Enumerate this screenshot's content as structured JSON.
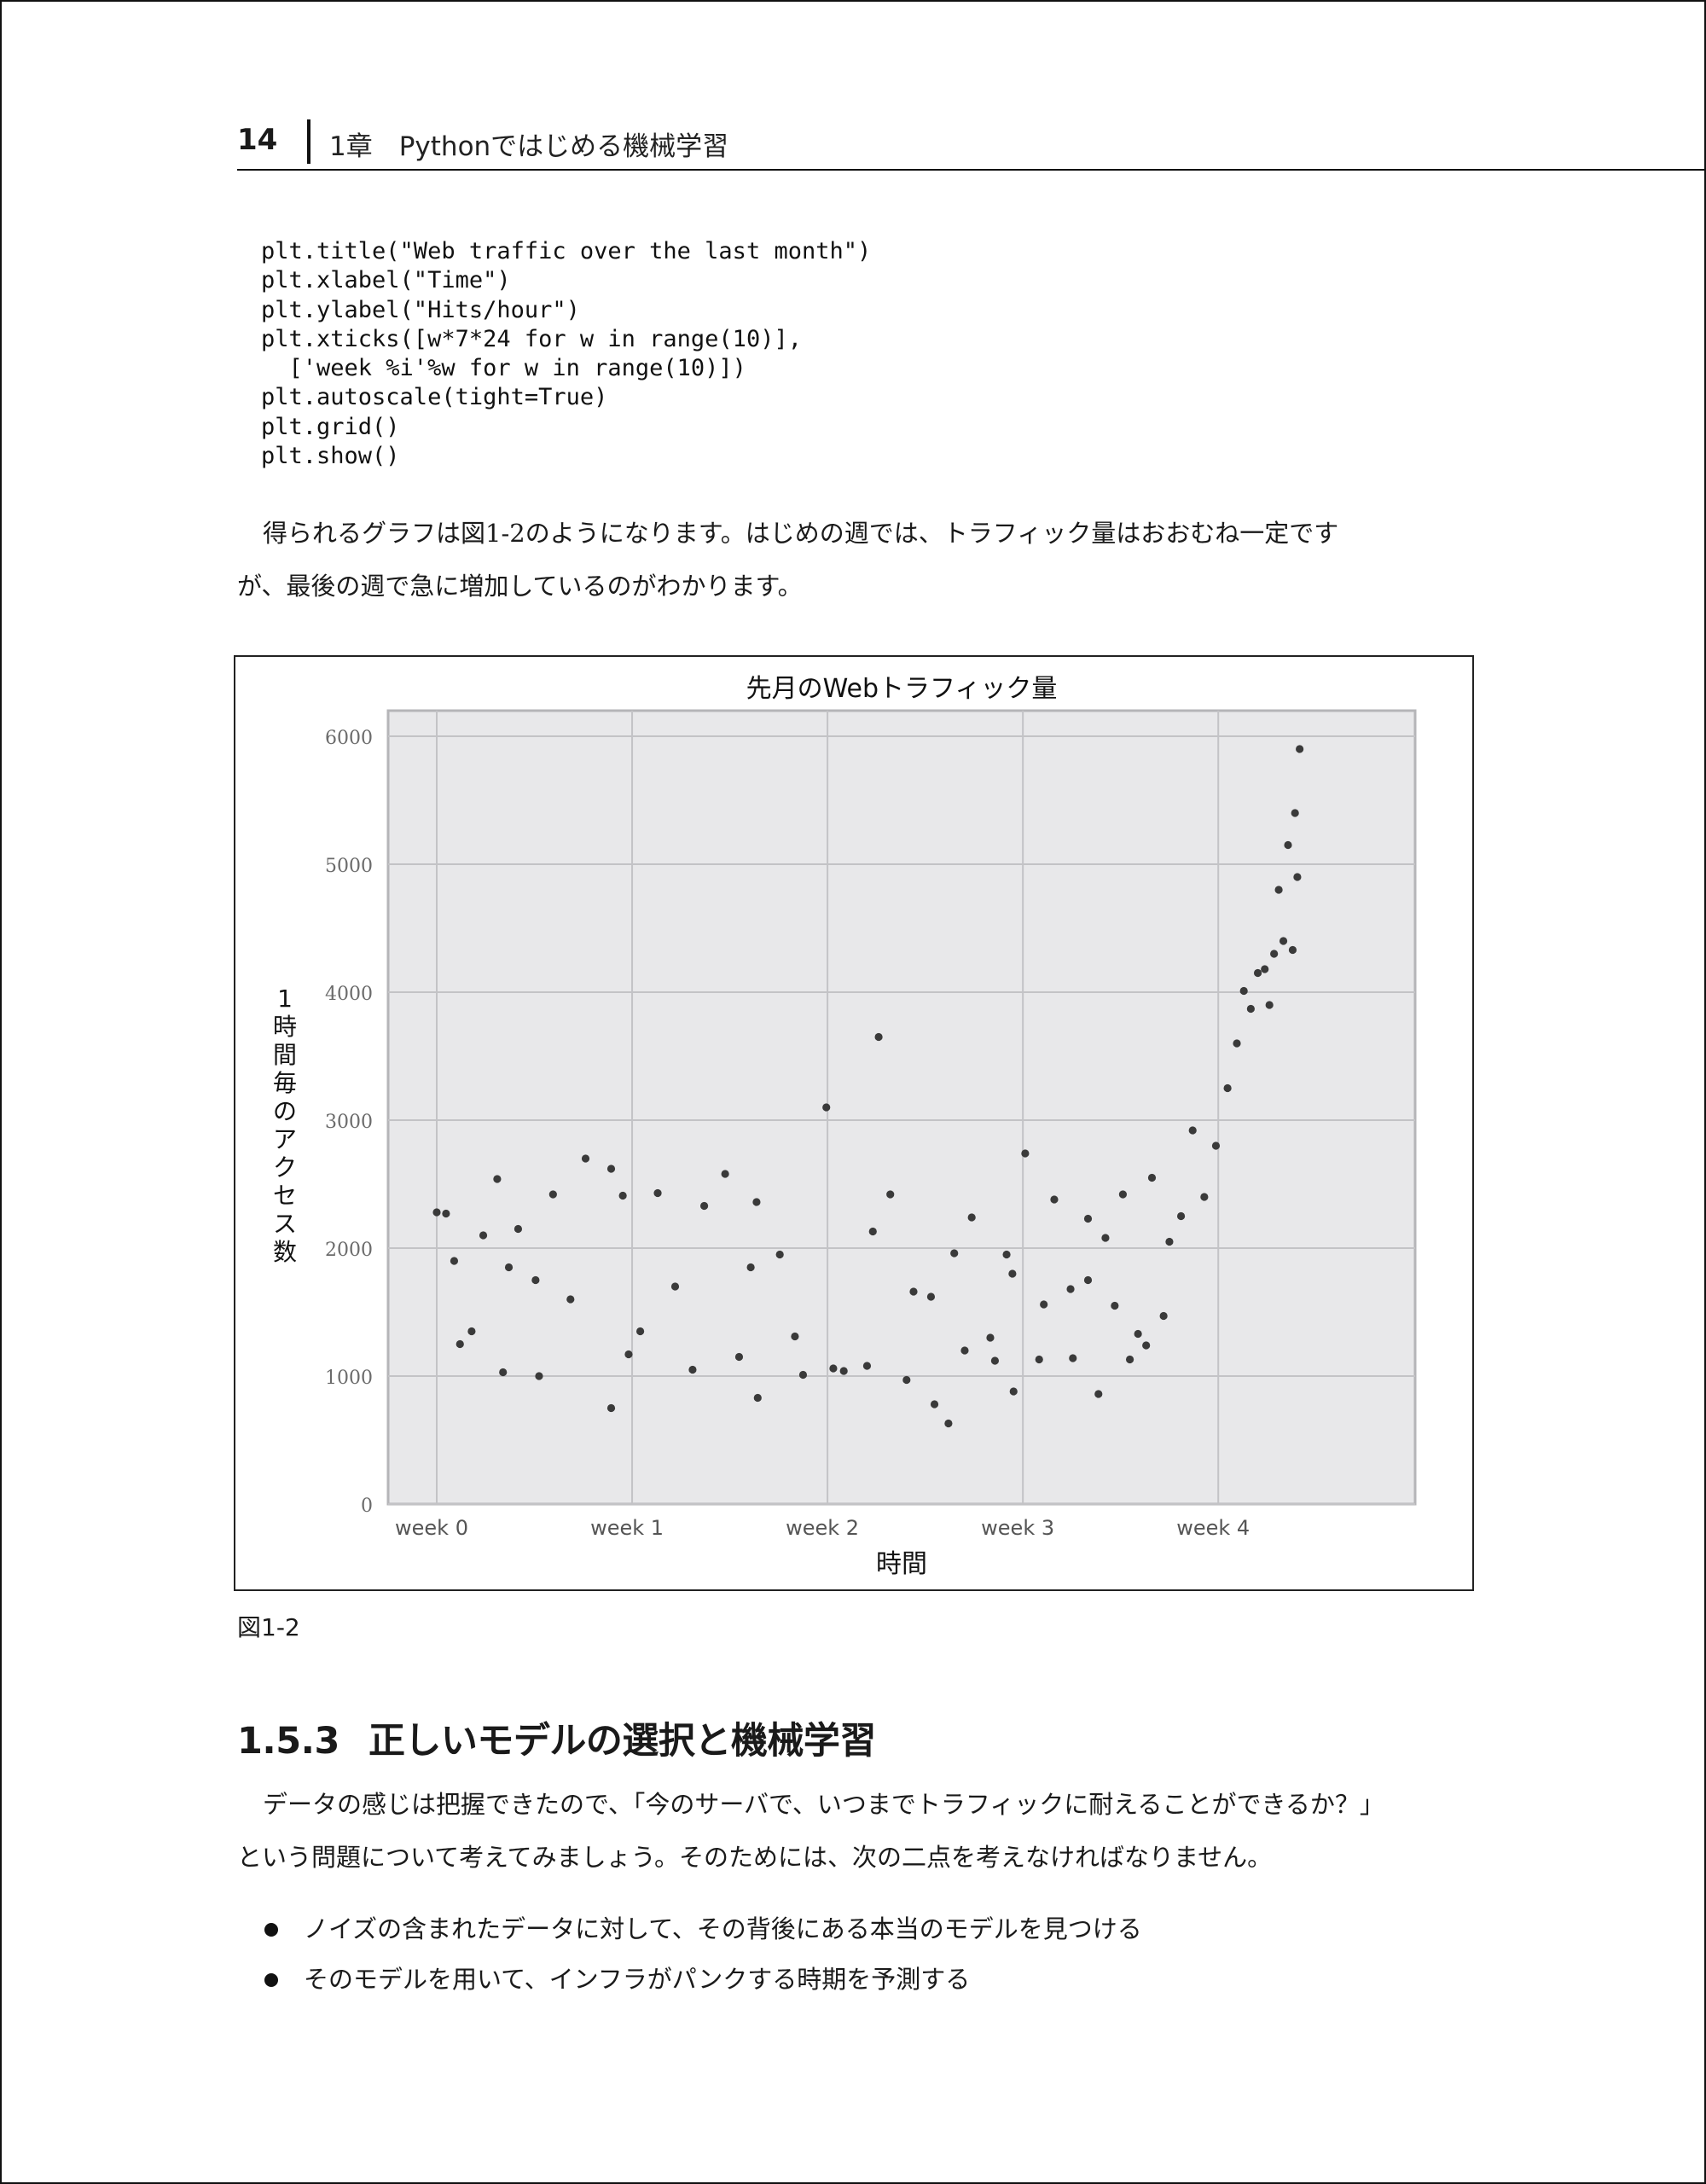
{
  "header": {
    "page_number": "14",
    "chapter_title": "1章　Pythonではじめる機械学習"
  },
  "code": {
    "lines": [
      "plt.title(\"Web traffic over the last month\")",
      "plt.xlabel(\"Time\")",
      "plt.ylabel(\"Hits/hour\")",
      "plt.xticks([w*7*24 for w in range(10)],",
      "  ['week %i'%w for w in range(10)])",
      "plt.autoscale(tight=True)",
      "plt.grid()",
      "plt.show()"
    ]
  },
  "paragraph1": {
    "line1": "得られるグラフは図1-2のようになります。はじめの週では、トラフィック量はおおむね一定です",
    "line2": "が、最後の週で急に増加しているのがわかります。"
  },
  "figure": {
    "caption": "図1-2"
  },
  "chart_data": {
    "type": "scatter",
    "title": "先月のWebトラフィック量",
    "xlabel": "時間",
    "ylabel": "1時間毎のアクセス数",
    "x_unit": "hours",
    "xlim": [
      0,
      743
    ],
    "ylim": [
      0,
      6000
    ],
    "grid": true,
    "y_ticks": [
      0,
      1000,
      2000,
      3000,
      4000,
      5000,
      6000
    ],
    "x_ticks": [
      {
        "value": 0,
        "label": "week 0"
      },
      {
        "value": 168,
        "label": "week 1"
      },
      {
        "value": 336,
        "label": "week 2"
      },
      {
        "value": 504,
        "label": "week 3"
      },
      {
        "value": 672,
        "label": "week 4"
      }
    ],
    "points": [
      [
        0,
        2280
      ],
      [
        8,
        2270
      ],
      [
        15,
        1900
      ],
      [
        20,
        1250
      ],
      [
        30,
        1350
      ],
      [
        40,
        2100
      ],
      [
        52,
        2540
      ],
      [
        62,
        1850
      ],
      [
        70,
        2150
      ],
      [
        85,
        1750
      ],
      [
        100,
        2420
      ],
      [
        115,
        1600
      ],
      [
        128,
        2700
      ],
      [
        150,
        2620
      ],
      [
        160,
        2410
      ],
      [
        175,
        1350
      ],
      [
        190,
        2430
      ],
      [
        205,
        1700
      ],
      [
        230,
        2330
      ],
      [
        248,
        2580
      ],
      [
        260,
        1150
      ],
      [
        275,
        2360
      ],
      [
        295,
        1950
      ],
      [
        315,
        1010
      ],
      [
        335,
        3100
      ],
      [
        350,
        1040
      ],
      [
        375,
        2130
      ],
      [
        390,
        2420
      ],
      [
        410,
        1660
      ],
      [
        425,
        1620
      ],
      [
        445,
        1960
      ],
      [
        460,
        2240
      ],
      [
        476,
        1300
      ],
      [
        490,
        1950
      ],
      [
        506,
        2740
      ],
      [
        518,
        1130
      ],
      [
        531,
        2380
      ],
      [
        545,
        1680
      ],
      [
        560,
        2230
      ],
      [
        575,
        2080
      ],
      [
        590,
        2420
      ],
      [
        603,
        1330
      ],
      [
        615,
        2550
      ],
      [
        630,
        2050
      ],
      [
        640,
        2250
      ],
      [
        650,
        2920
      ],
      [
        660,
        2400
      ],
      [
        670,
        2800
      ],
      [
        680,
        3250
      ],
      [
        688,
        3600
      ],
      [
        694,
        4010
      ],
      [
        700,
        3870
      ],
      [
        706,
        4150
      ],
      [
        712,
        4180
      ],
      [
        716,
        3900
      ],
      [
        720,
        4300
      ],
      [
        724,
        4800
      ],
      [
        728,
        4400
      ],
      [
        732,
        5150
      ],
      [
        736,
        4330
      ],
      [
        738,
        5400
      ],
      [
        740,
        4900
      ],
      [
        742,
        5900
      ],
      [
        57,
        1030
      ],
      [
        88,
        1000
      ],
      [
        150,
        750
      ],
      [
        165,
        1170
      ],
      [
        220,
        1050
      ],
      [
        276,
        830
      ],
      [
        308,
        1310
      ],
      [
        341,
        1060
      ],
      [
        370,
        1080
      ],
      [
        404,
        970
      ],
      [
        428,
        780
      ],
      [
        440,
        630
      ],
      [
        454,
        1200
      ],
      [
        480,
        1120
      ],
      [
        496,
        880
      ],
      [
        522,
        1560
      ],
      [
        547,
        1140
      ],
      [
        569,
        860
      ],
      [
        583,
        1550
      ],
      [
        596,
        1130
      ],
      [
        610,
        1240
      ],
      [
        625,
        1470
      ],
      [
        380,
        3650
      ],
      [
        495,
        1800
      ],
      [
        560,
        1750
      ],
      [
        270,
        1850
      ]
    ]
  },
  "section": {
    "number": "1.5.3",
    "title": "正しいモデルの選択と機械学習"
  },
  "paragraph2": {
    "line1": "データの感じは把握できたので、「今のサーバで、いつまでトラフィックに耐えることができるか？」",
    "line2": "という問題について考えてみましょう。そのためには、次の二点を考えなければなりません。"
  },
  "bullets": [
    "ノイズの含まれたデータに対して、その背後にある本当のモデルを見つける",
    "そのモデルを用いて、インフラがパンクする時期を予測する"
  ]
}
